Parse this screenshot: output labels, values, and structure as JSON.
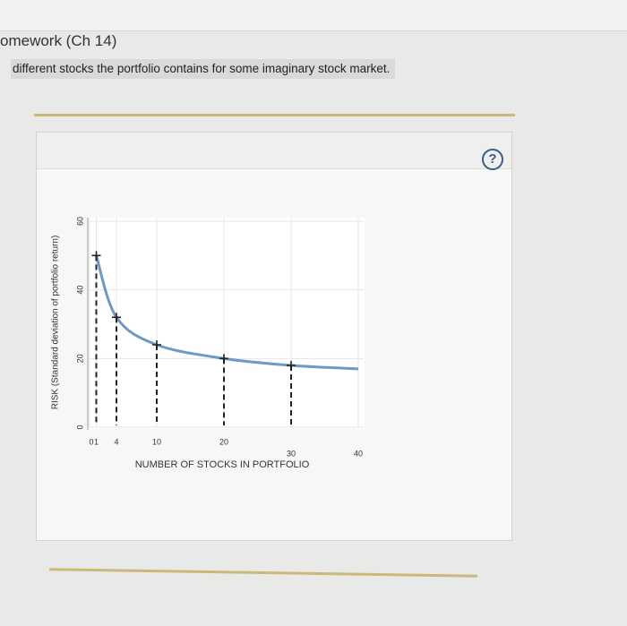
{
  "header": {
    "title": "omework (Ch 14)",
    "subtitle": "different stocks the portfolio contains for some imaginary stock market."
  },
  "help": "?",
  "chart_data": {
    "type": "line",
    "x_label": "NUMBER OF STOCKS IN PORTFOLIO",
    "y_label": "RISK (Standard deviation of portfolio return)",
    "series": [
      {
        "x": [
          1,
          4,
          10,
          20,
          30,
          40
        ],
        "values": [
          50,
          32,
          24,
          20,
          18,
          17
        ],
        "color": "#6b9ac4"
      }
    ],
    "points": {
      "x": [
        1,
        4,
        10,
        20,
        30
      ],
      "values": [
        50,
        32,
        24,
        20,
        18
      ]
    },
    "xlim": [
      0,
      40
    ],
    "ylim": [
      0,
      60
    ],
    "xticks": [
      0,
      1,
      4,
      10,
      20,
      30,
      40
    ],
    "yticks": [
      0,
      20,
      40,
      60
    ],
    "grid": true
  }
}
